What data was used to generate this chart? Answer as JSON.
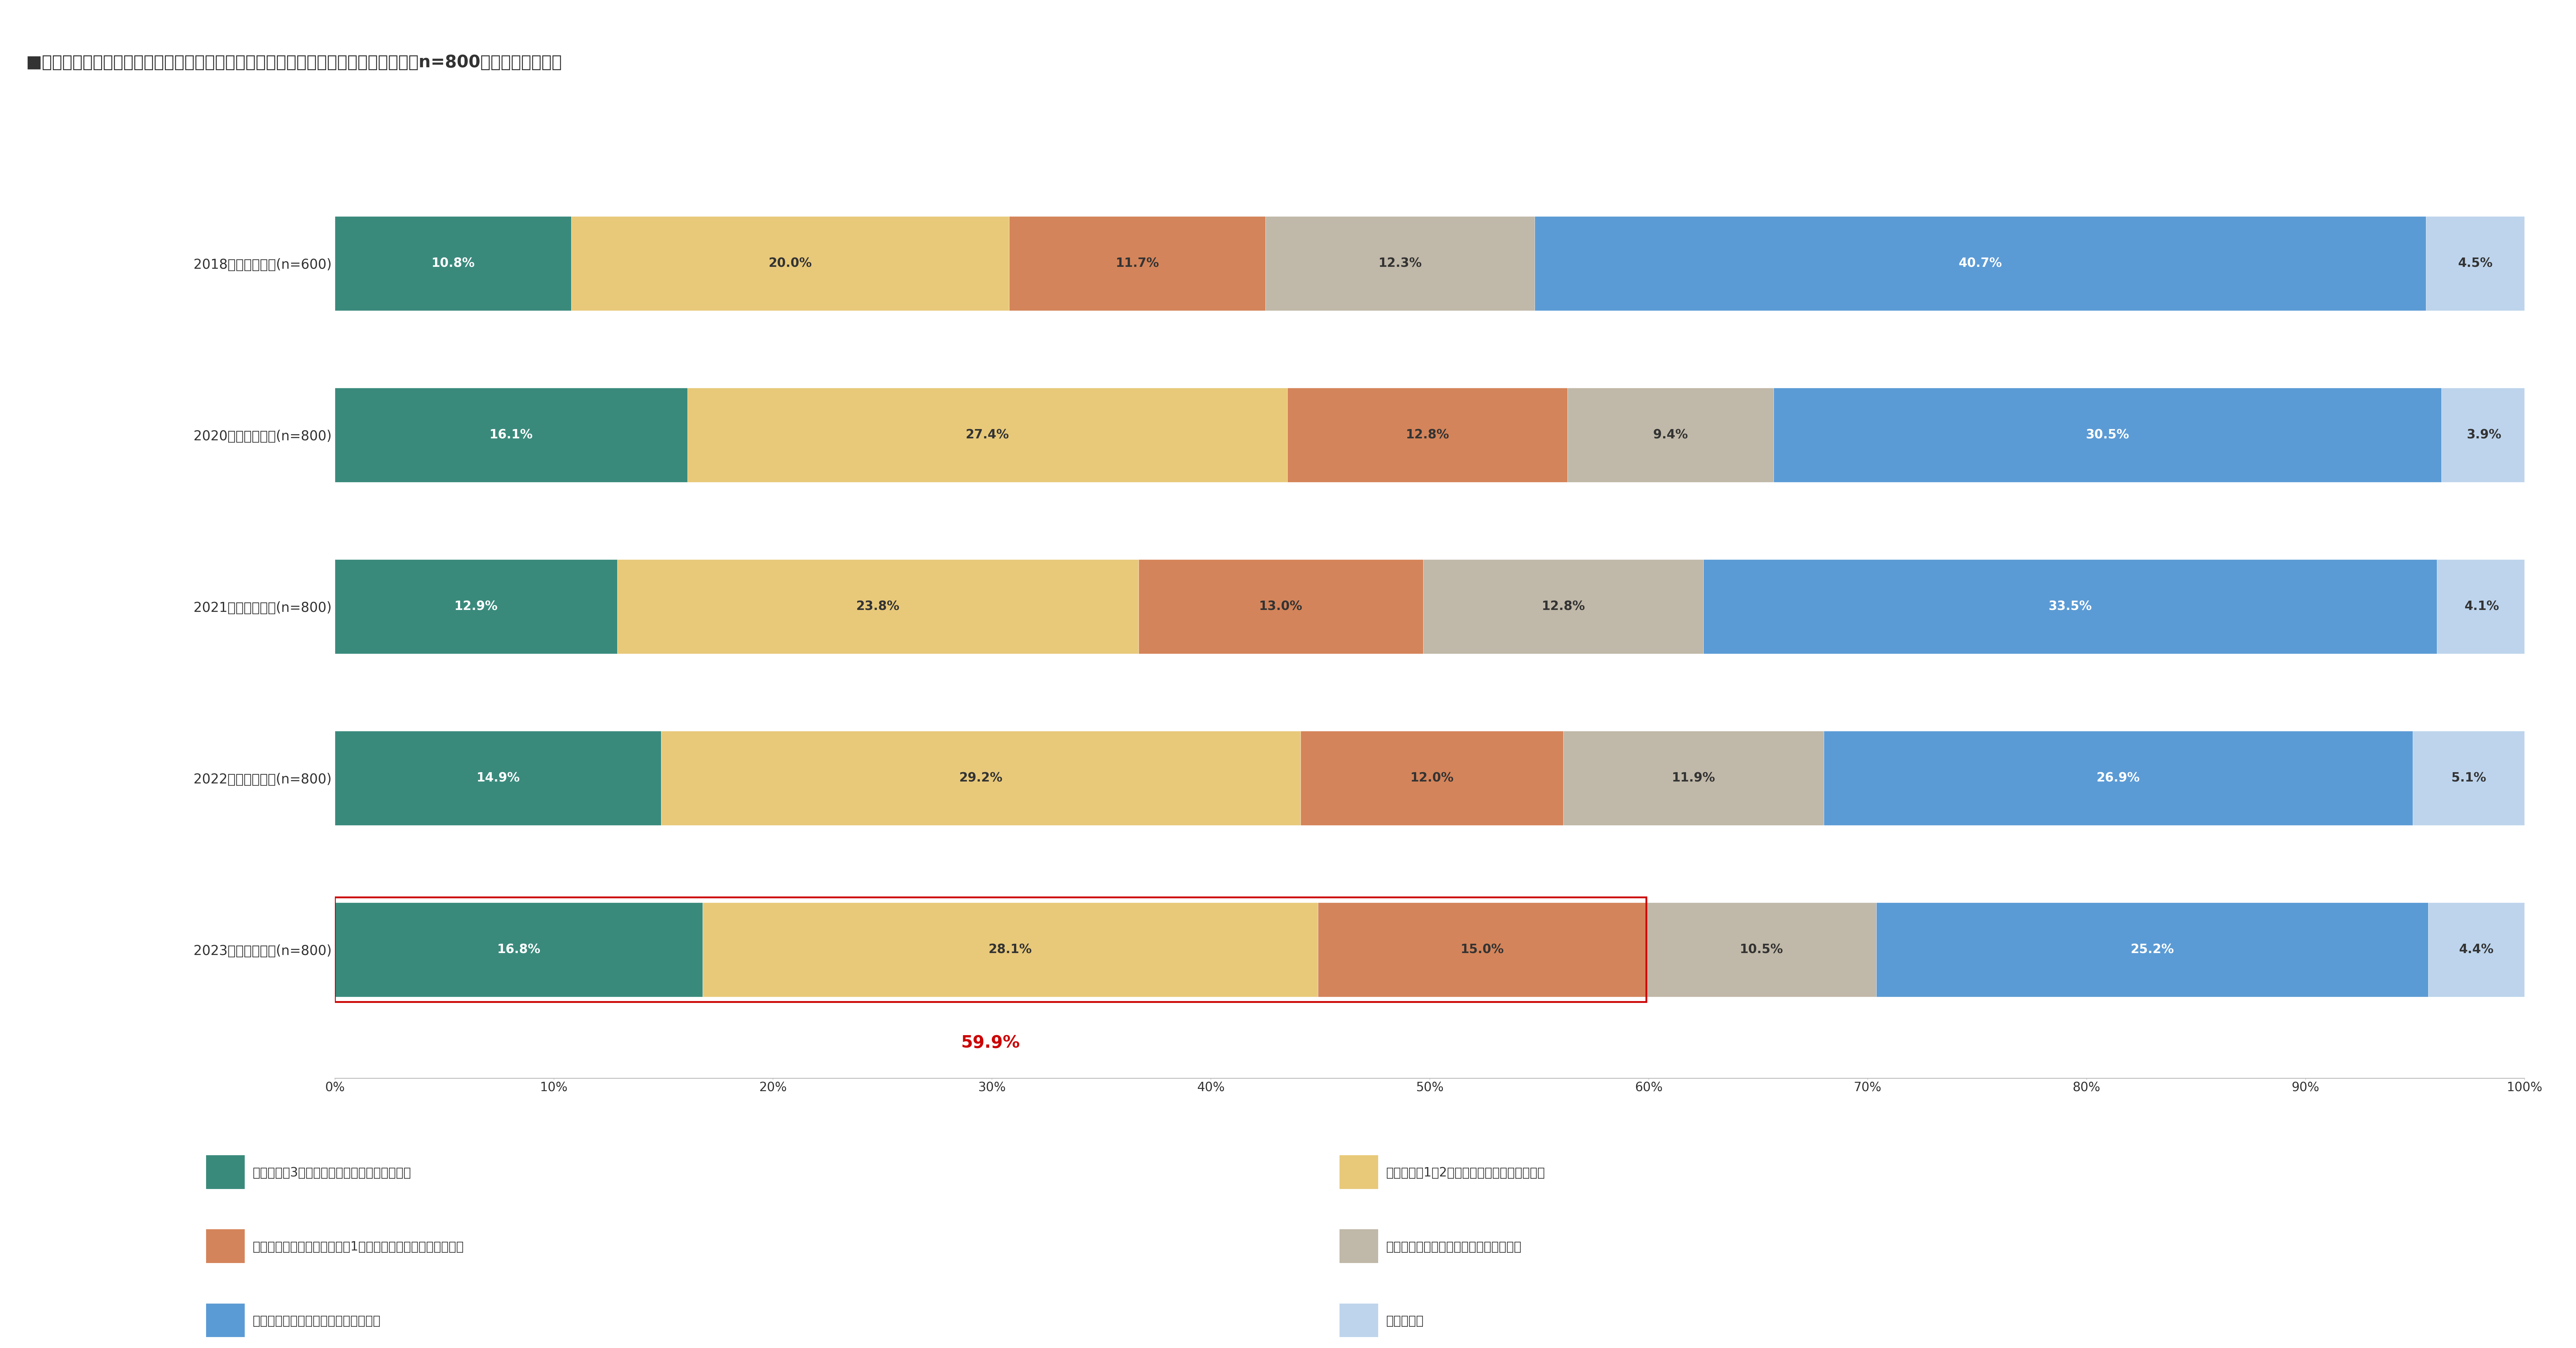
{
  "title": "■各種災害に対応するための防災食（非常食）を現在、ご自宅に備えていますか？（n=800／単一回答方式）",
  "title_fontsize": 38,
  "rows": [
    {
      "label": "2018年調査／全国(n=600)",
      "values": [
        10.8,
        20.0,
        11.7,
        12.3,
        40.7,
        4.5
      ]
    },
    {
      "label": "2020年調査／全国(n=800)",
      "values": [
        16.1,
        27.4,
        12.8,
        9.4,
        30.5,
        3.9
      ]
    },
    {
      "label": "2021年調査／全国(n=800)",
      "values": [
        12.9,
        23.8,
        13.0,
        12.8,
        33.5,
        4.1
      ]
    },
    {
      "label": "2022年調査／全国(n=800)",
      "values": [
        14.9,
        29.2,
        12.0,
        11.9,
        26.9,
        5.1
      ]
    },
    {
      "label": "2023年調査／全国(n=800)",
      "values": [
        16.8,
        28.1,
        15.0,
        10.5,
        25.2,
        4.4
      ]
    }
  ],
  "colors": [
    "#3a8a7c",
    "#e8c97a",
    "#d4845a",
    "#c0b8a8",
    "#5b9bd5",
    "#bdd4ec"
  ],
  "legend_labels": [
    "家族全員が3日以上対応できる量を備えている",
    "家族全員が1～2日対応できる量を備えている",
    "備えてはいるが、家族全員が1日以上対応することはできない",
    "以前備えていたが、現在は備えていない",
    "防災食（非常食）を備えたことはない",
    "分からない"
  ],
  "highlight_row": 4,
  "highlight_color": "#cc0000",
  "highlight_value_text": "59.9%",
  "highlight_value_color": "#cc0000",
  "bar_height": 0.55,
  "background_color": "#ffffff",
  "label_fontsize": 30,
  "value_fontsize": 28,
  "axis_fontsize": 28,
  "legend_fontsize": 28,
  "text_color": "#333333"
}
